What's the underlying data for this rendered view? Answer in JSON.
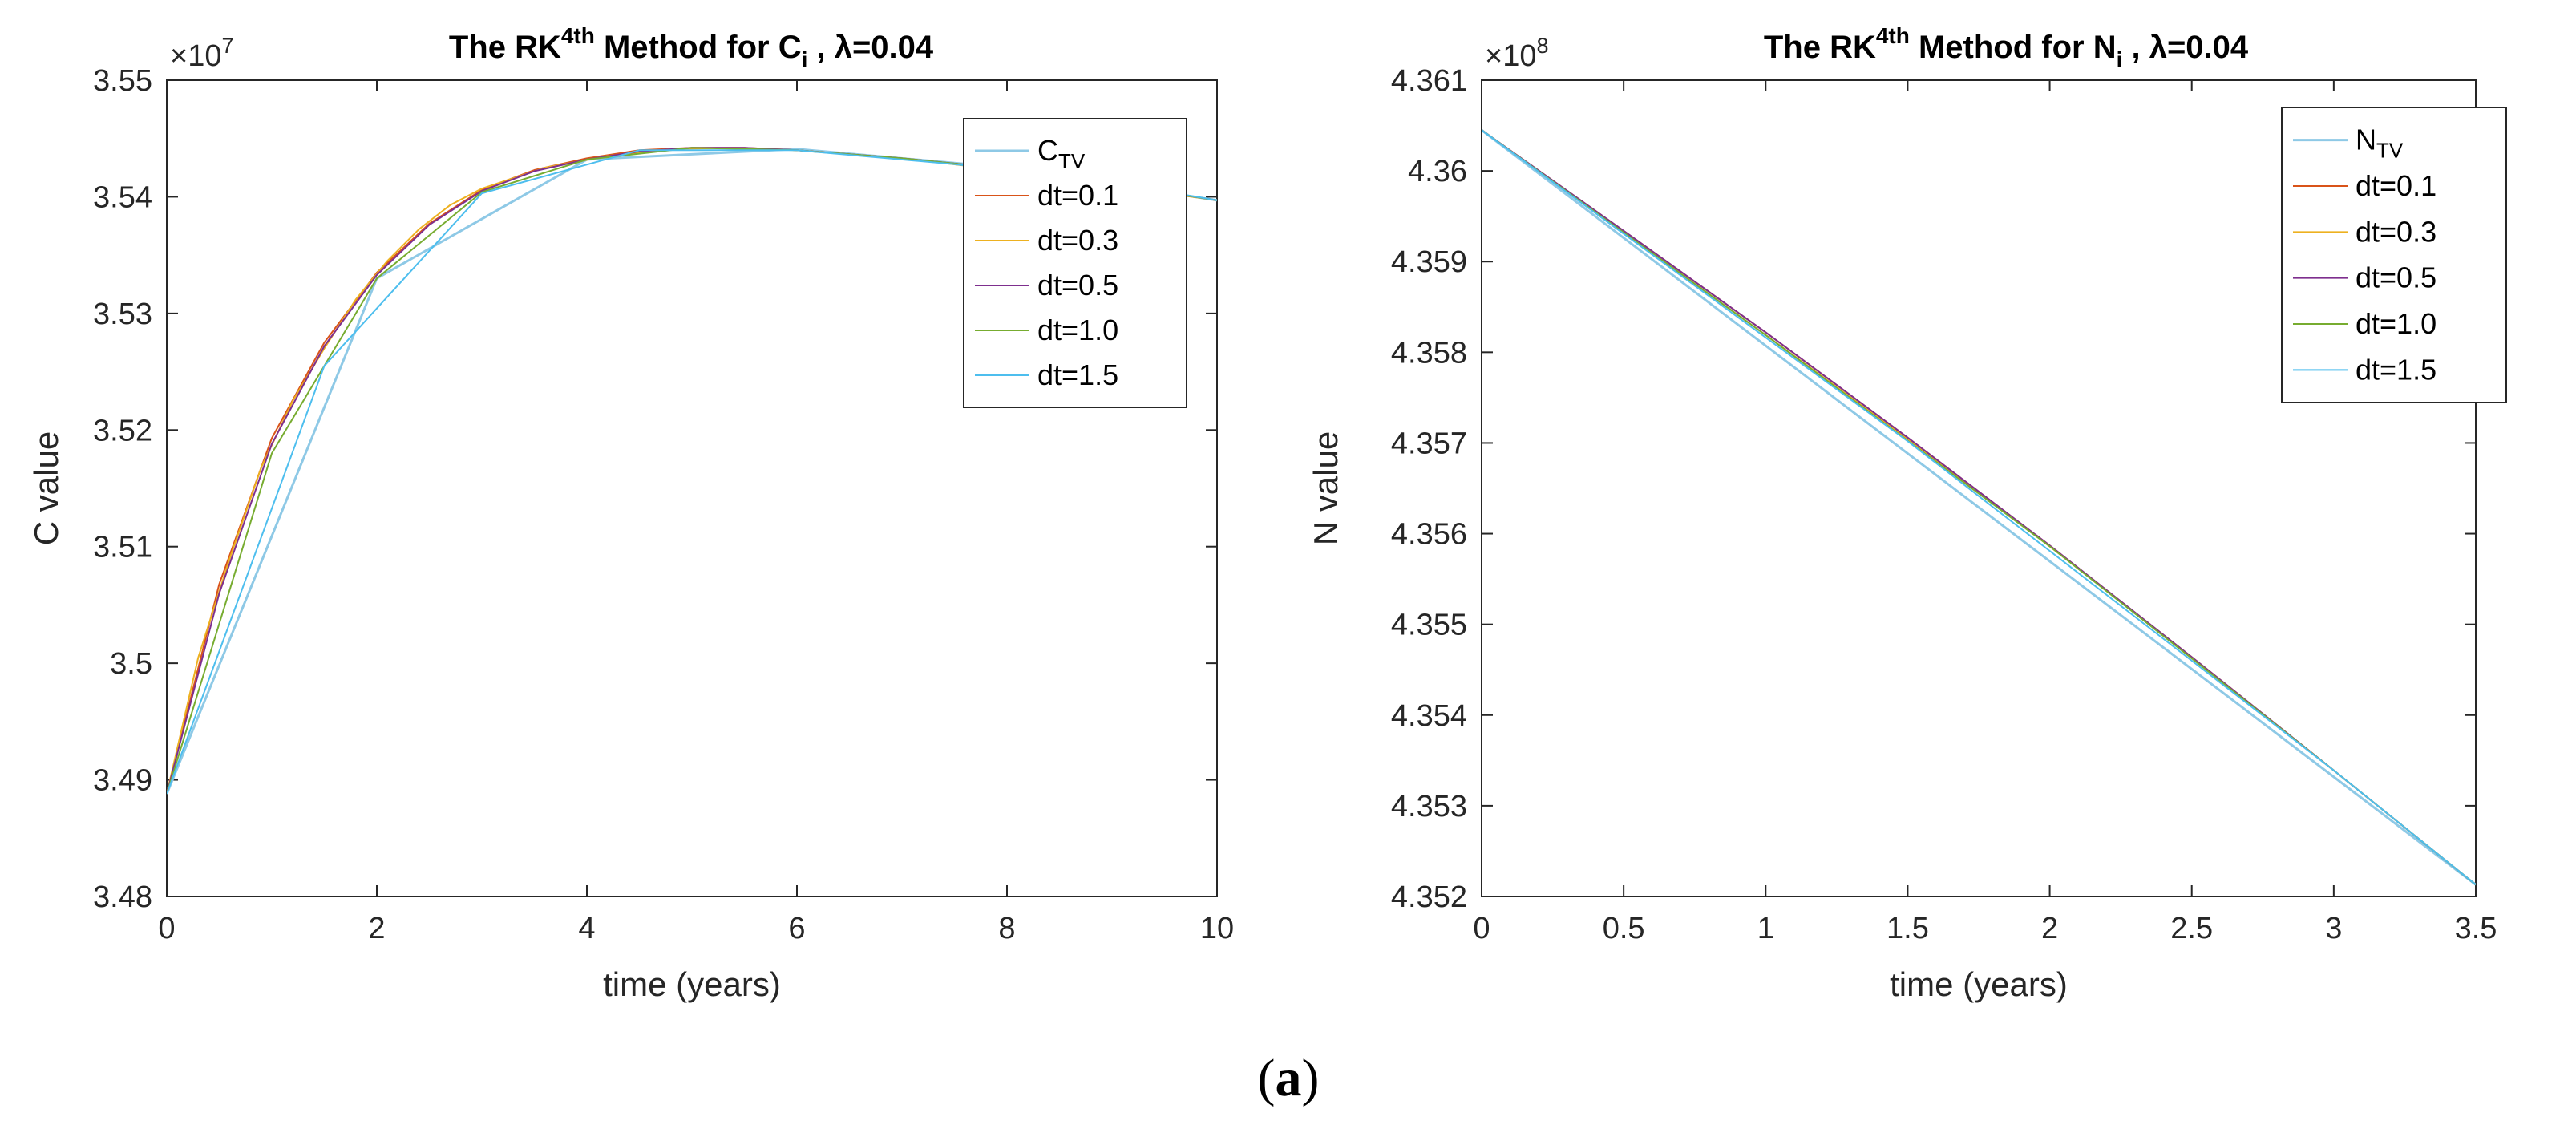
{
  "caption": {
    "open": "(",
    "letter": "a",
    "close": ")"
  },
  "chart_data": [
    {
      "type": "line",
      "title": {
        "prefix": "The RK",
        "sup": "4th",
        "middle": " Method for C",
        "sub": "i",
        "param": "  ,  λ=0.04"
      },
      "xlabel": "time (years)",
      "ylabel": "C value",
      "exponent": {
        "base": "×10",
        "power": "7"
      },
      "xlim": [
        0,
        10
      ],
      "ylim": [
        3.48,
        3.55
      ],
      "xticks": [
        0,
        2,
        4,
        6,
        8,
        10
      ],
      "xtick_labels": [
        "0",
        "2",
        "4",
        "6",
        "8",
        "10"
      ],
      "yticks": [
        3.48,
        3.49,
        3.5,
        3.51,
        3.52,
        3.53,
        3.54,
        3.55
      ],
      "ytick_labels": [
        "3.48",
        "3.49",
        "3.5",
        "3.51",
        "3.52",
        "3.53",
        "3.54",
        "3.55"
      ],
      "legend_position": "top-right",
      "series": [
        {
          "name": "C",
          "sub": "TV",
          "color": "#8ec9e6",
          "width": 3,
          "x": [
            0,
            2,
            4,
            6,
            8,
            10
          ],
          "y": [
            3.4888,
            3.533,
            3.5432,
            3.5441,
            3.5425,
            3.5397
          ]
        },
        {
          "name": "dt=0.1",
          "color": "#d95319",
          "width": 2,
          "x": [
            0,
            0.5,
            1,
            1.5,
            2,
            2.5,
            3,
            3.5,
            4,
            4.5,
            5,
            5.5,
            6,
            7,
            8,
            9,
            10
          ],
          "y": [
            3.4888,
            3.5068,
            3.5193,
            3.5275,
            3.5335,
            3.5377,
            3.5406,
            3.5423,
            3.5433,
            3.544,
            3.5442,
            3.5442,
            3.544,
            3.5433,
            3.5424,
            3.5411,
            3.5397
          ]
        },
        {
          "name": "dt=0.3",
          "color": "#edb120",
          "width": 2,
          "x": [
            0,
            0.3,
            0.6,
            0.9,
            1.2,
            1.5,
            1.8,
            2.1,
            2.4,
            2.7,
            3,
            3.6,
            4.2,
            4.8,
            5.4,
            6,
            7.2,
            8.4,
            9.6,
            10
          ],
          "y": [
            3.4888,
            3.5005,
            3.509,
            3.5168,
            3.5225,
            3.527,
            3.5312,
            3.5345,
            3.5372,
            3.5393,
            3.5407,
            3.5425,
            3.5435,
            3.5441,
            3.5442,
            3.544,
            3.5431,
            3.5418,
            3.5402,
            3.5397
          ]
        },
        {
          "name": "dt=0.5",
          "color": "#7e2f8e",
          "width": 2,
          "x": [
            0,
            0.5,
            1,
            1.5,
            2,
            2.5,
            3,
            3.5,
            4,
            4.5,
            5,
            5.5,
            6,
            7,
            8,
            9,
            10
          ],
          "y": [
            3.4888,
            3.506,
            3.5188,
            3.5272,
            3.5333,
            3.5376,
            3.5405,
            3.5422,
            3.5432,
            3.5439,
            3.5442,
            3.5442,
            3.544,
            3.5433,
            3.5424,
            3.5411,
            3.5397
          ]
        },
        {
          "name": "dt=1.0",
          "color": "#77ac30",
          "width": 2,
          "x": [
            0,
            1,
            2,
            3,
            4,
            5,
            6,
            7,
            8,
            9,
            10
          ],
          "y": [
            3.4888,
            3.518,
            3.533,
            3.5404,
            3.5432,
            3.5442,
            3.544,
            3.5433,
            3.5424,
            3.5411,
            3.5397
          ]
        },
        {
          "name": "dt=1.5",
          "color": "#4dbeee",
          "width": 2,
          "x": [
            0,
            1.5,
            3,
            4.5,
            6,
            7.5,
            9,
            10
          ],
          "y": [
            3.4888,
            3.5255,
            3.5403,
            3.544,
            3.544,
            3.5428,
            3.5412,
            3.5397
          ]
        }
      ]
    },
    {
      "type": "line",
      "title": {
        "prefix": "The RK",
        "sup": "4th",
        "middle": " Method for N",
        "sub": "i",
        "param": "  ,  λ=0.04"
      },
      "xlabel": "time (years)",
      "ylabel": "N value",
      "exponent": {
        "base": "×10",
        "power": "8"
      },
      "xlim": [
        0,
        3.5
      ],
      "ylim": [
        4.352,
        4.361
      ],
      "xticks": [
        0,
        0.5,
        1,
        1.5,
        2,
        2.5,
        3,
        3.5
      ],
      "xtick_labels": [
        "0",
        "0.5",
        "1",
        "1.5",
        "2",
        "2.5",
        "3",
        "3.5"
      ],
      "yticks": [
        4.352,
        4.353,
        4.354,
        4.355,
        4.356,
        4.357,
        4.358,
        4.359,
        4.36,
        4.361
      ],
      "ytick_labels": [
        "4.352",
        "4.353",
        "4.354",
        "4.355",
        "4.356",
        "4.357",
        "4.358",
        "4.359",
        "4.36",
        "4.361"
      ],
      "legend_position": "top-right",
      "series": [
        {
          "name": "N",
          "sub": "TV",
          "color": "#8ec9e6",
          "width": 3,
          "x": [
            0,
            3.5
          ],
          "y": [
            4.36045,
            4.35213
          ]
        },
        {
          "name": "dt=0.1",
          "color": "#d95319",
          "width": 2,
          "x": [
            0,
            0.5,
            1,
            1.5,
            2,
            2.5,
            3,
            3.5
          ],
          "y": [
            4.36045,
            4.35934,
            4.35822,
            4.35706,
            4.35587,
            4.35464,
            4.35339,
            4.35213
          ]
        },
        {
          "name": "dt=0.3",
          "color": "#edb120",
          "width": 2,
          "x": [
            0,
            0.5,
            1,
            1.5,
            2,
            2.5,
            3,
            3.5
          ],
          "y": [
            4.36045,
            4.35932,
            4.35819,
            4.35704,
            4.35586,
            4.35464,
            4.35339,
            4.35213
          ]
        },
        {
          "name": "dt=0.5",
          "color": "#7e2f8e",
          "width": 2,
          "x": [
            0,
            0.5,
            1,
            1.5,
            2,
            2.5,
            3,
            3.5
          ],
          "y": [
            4.36045,
            4.35934,
            4.35822,
            4.35706,
            4.35587,
            4.35464,
            4.35339,
            4.35213
          ]
        },
        {
          "name": "dt=1.0",
          "color": "#77ac30",
          "width": 2,
          "x": [
            0,
            1,
            2,
            3,
            3.5
          ],
          "y": [
            4.36045,
            4.35819,
            4.35586,
            4.35339,
            4.35213
          ]
        },
        {
          "name": "dt=1.5",
          "color": "#4dbeee",
          "width": 2,
          "x": [
            0,
            1.5,
            3,
            3.5
          ],
          "y": [
            4.36045,
            4.35702,
            4.35339,
            4.35213
          ]
        }
      ]
    }
  ]
}
